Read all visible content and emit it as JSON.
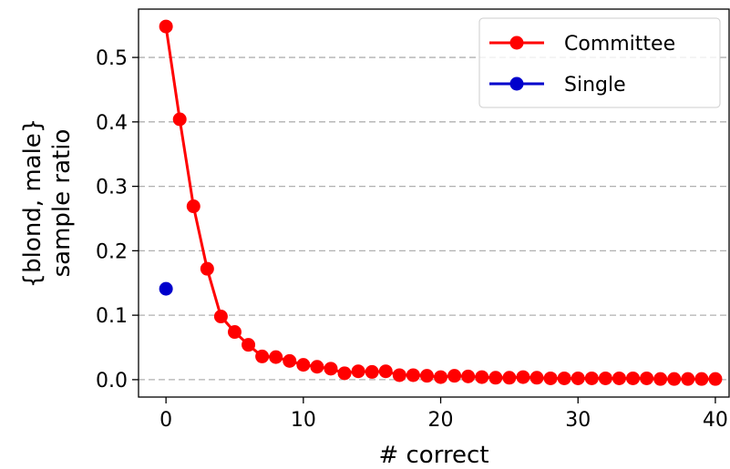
{
  "chart_data": {
    "type": "line",
    "xlabel": "# correct",
    "ylabel_lines": [
      "{blond, male}",
      "sample ratio"
    ],
    "xlim": [
      -2,
      41
    ],
    "ylim": [
      -0.027,
      0.575
    ],
    "xticks": [
      0,
      10,
      20,
      30,
      40
    ],
    "yticks": [
      0.0,
      0.1,
      0.2,
      0.3,
      0.4,
      0.5
    ],
    "ytick_labels": [
      "0.0",
      "0.1",
      "0.2",
      "0.3",
      "0.4",
      "0.5"
    ],
    "grid": "horizontal dashed",
    "legend_position": "top-right",
    "series": [
      {
        "name": "Committee",
        "color": "#ff0000",
        "style": "line-with-markers",
        "x": [
          0,
          1,
          2,
          3,
          4,
          5,
          6,
          7,
          8,
          9,
          10,
          11,
          12,
          13,
          14,
          15,
          16,
          17,
          18,
          19,
          20,
          21,
          22,
          23,
          24,
          25,
          26,
          27,
          28,
          29,
          30,
          31,
          32,
          33,
          34,
          35,
          36,
          37,
          38,
          39,
          40
        ],
        "y": [
          0.548,
          0.404,
          0.269,
          0.172,
          0.098,
          0.074,
          0.054,
          0.036,
          0.035,
          0.029,
          0.023,
          0.02,
          0.017,
          0.01,
          0.013,
          0.012,
          0.013,
          0.007,
          0.007,
          0.006,
          0.004,
          0.006,
          0.005,
          0.004,
          0.003,
          0.003,
          0.004,
          0.003,
          0.002,
          0.002,
          0.002,
          0.002,
          0.002,
          0.002,
          0.002,
          0.002,
          0.001,
          0.001,
          0.001,
          0.001,
          0.001
        ]
      },
      {
        "name": "Single",
        "color": "#0000cc",
        "style": "markers",
        "x": [
          0
        ],
        "y": [
          0.141
        ]
      }
    ]
  }
}
